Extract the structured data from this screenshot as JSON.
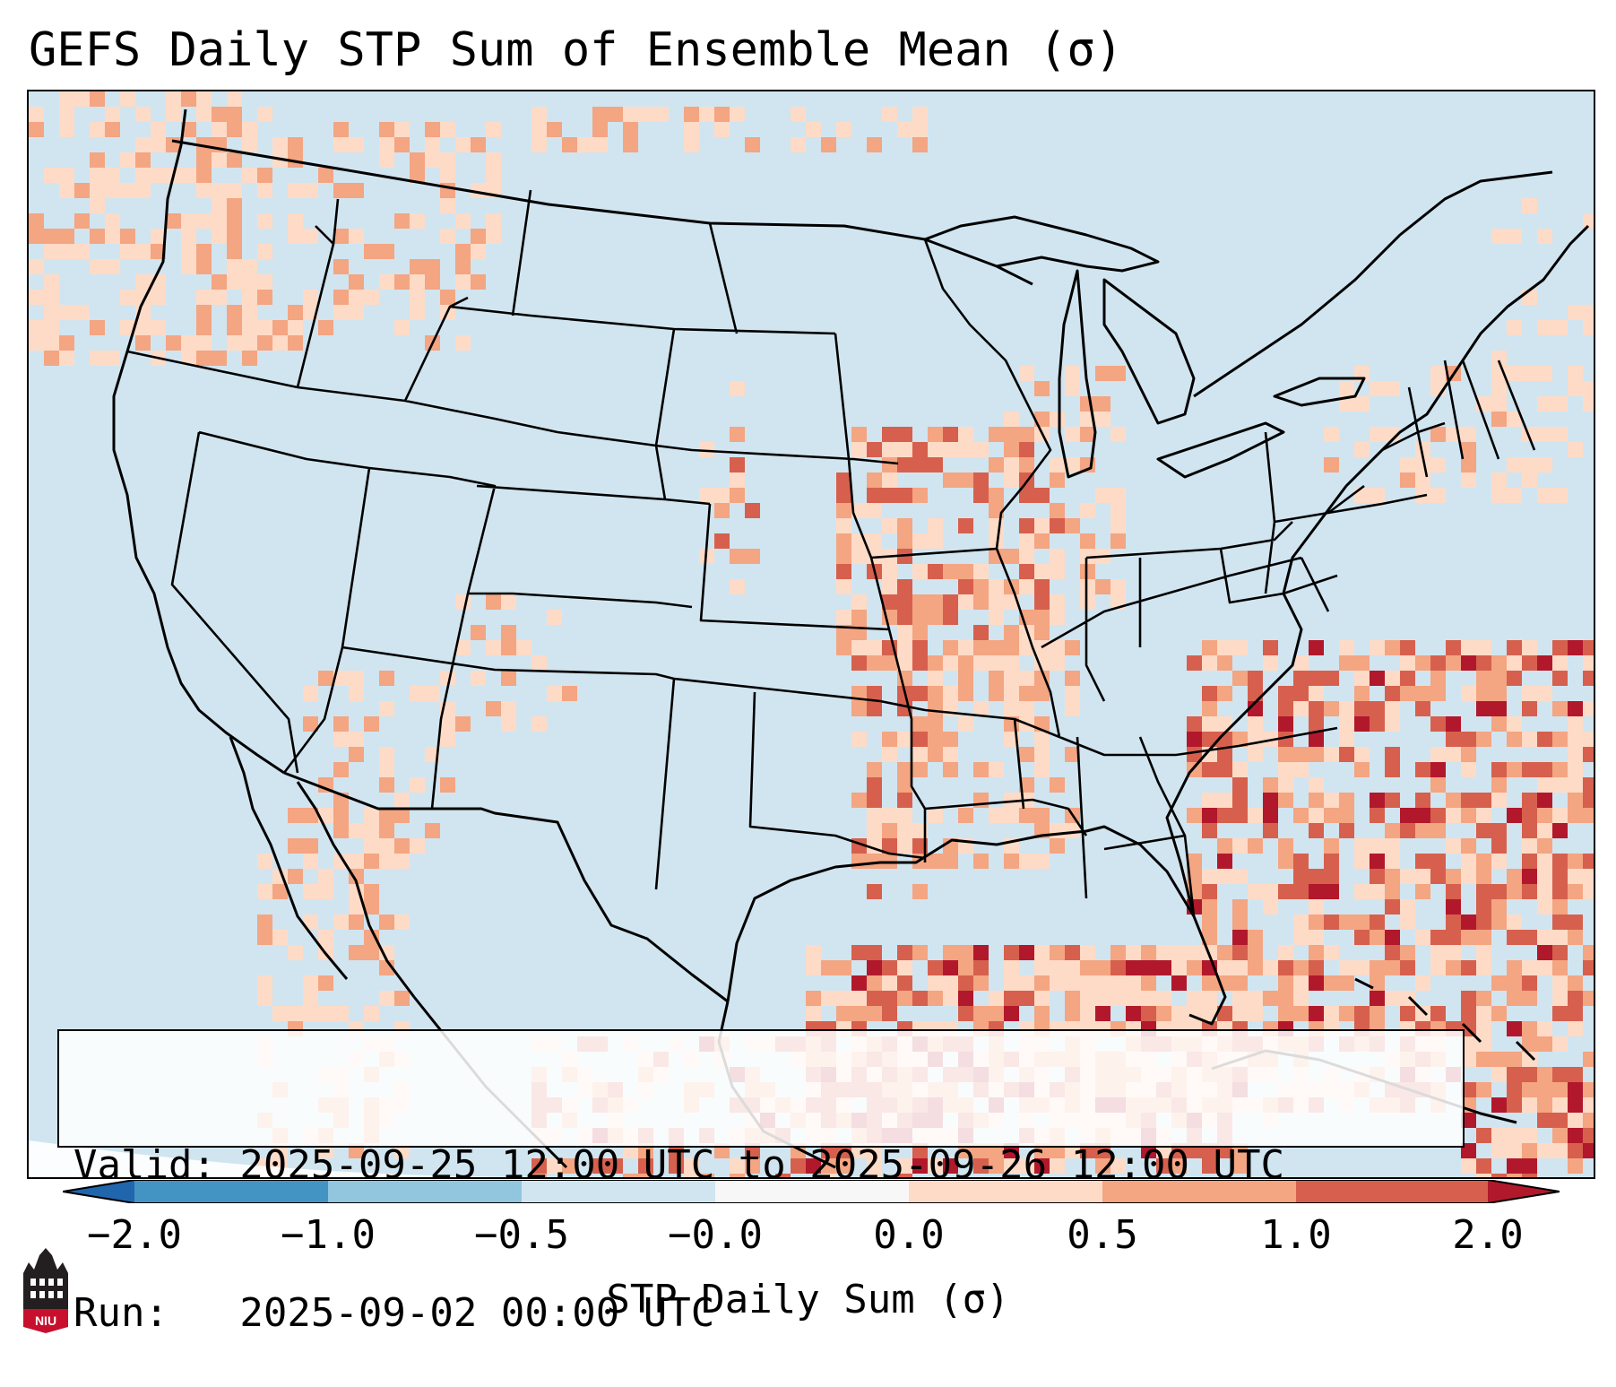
{
  "title": "GEFS Daily STP Sum of Ensemble Mean (σ)",
  "info": {
    "valid_line": "Valid: 2025-09-25 12:00 UTC to 2025-09-26 12:00 UTC",
    "run_line": "Run:   2025-09-02 00:00 UTC"
  },
  "colorbar": {
    "label": "STP Daily Sum (σ)",
    "ticks": [
      "−2.0",
      "−1.0",
      "−0.5",
      "−0.0",
      "0.0",
      "0.5",
      "1.0",
      "2.0"
    ],
    "bins": [
      {
        "range": "< -2.0",
        "color": "#2166ac"
      },
      {
        "range": "-2.0 to -1.0",
        "color": "#4393c3"
      },
      {
        "range": "-1.0 to -0.5",
        "color": "#92c5de"
      },
      {
        "range": "-0.5 to -0.0",
        "color": "#d1e5f0"
      },
      {
        "range": "-0.0 to 0.0",
        "color": "#f7f7f7"
      },
      {
        "range": "0.0 to 0.5",
        "color": "#fddbc7"
      },
      {
        "range": "0.5 to 1.0",
        "color": "#f4a582"
      },
      {
        "range": "1.0 to 2.0",
        "color": "#d6604d"
      },
      {
        "range": "> 2.0",
        "color": "#b2182b"
      }
    ]
  },
  "map": {
    "region": "Contiguous United States",
    "background_color": "#d1e5f0"
  },
  "logo": {
    "text": "NIU",
    "color": "#c8102e"
  }
}
